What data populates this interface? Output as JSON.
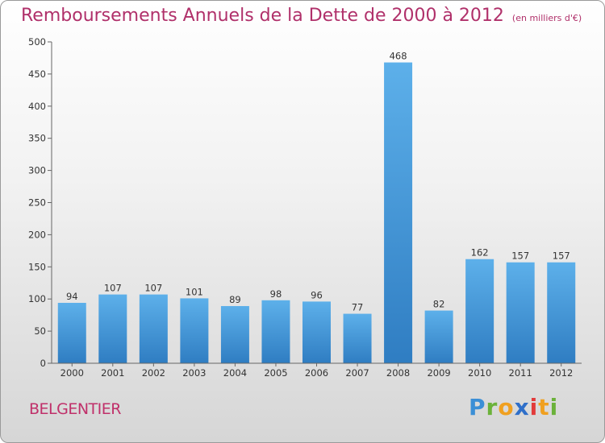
{
  "title": "Remboursements Annuels de la Dette de 2000 à 2012",
  "unit": "(en milliers d'€)",
  "commune": "BELGENTIER",
  "logo": {
    "letters": [
      "P",
      "r",
      "o",
      "x",
      "i",
      "t",
      "i"
    ],
    "colors": [
      "#3b8fd6",
      "#6bb23a",
      "#f0a020",
      "#2f6fc9",
      "#e23b3b",
      "#f0a020",
      "#6bb23a"
    ]
  },
  "chart_data": {
    "type": "bar",
    "categories": [
      "2000",
      "2001",
      "2002",
      "2003",
      "2004",
      "2005",
      "2006",
      "2007",
      "2008",
      "2009",
      "2010",
      "2011",
      "2012"
    ],
    "values": [
      94,
      107,
      107,
      101,
      89,
      98,
      96,
      77,
      468,
      82,
      162,
      157,
      157
    ],
    "ylim": [
      0,
      500
    ],
    "yticks": [
      0,
      50,
      100,
      150,
      200,
      250,
      300,
      350,
      400,
      450,
      500
    ],
    "grid": false,
    "colors": {
      "bar_top": "#5db0ea",
      "bar_bottom": "#2f7dc2",
      "axis": "#666666"
    }
  }
}
